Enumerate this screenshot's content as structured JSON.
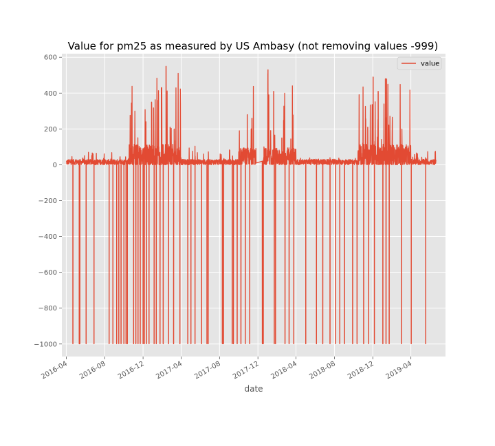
{
  "chart_data": {
    "type": "line",
    "title": "Value for pm25 as measured by US Ambasy (not removing values -999)",
    "xlabel": "date",
    "ylabel": "",
    "x_ticks": [
      "2016-04",
      "2016-08",
      "2016-12",
      "2017-04",
      "2017-08",
      "2017-12",
      "2018-04",
      "2018-08",
      "2018-12",
      "2019-04"
    ],
    "y_ticks": [
      600,
      400,
      200,
      0,
      -200,
      -400,
      -600,
      -800,
      -1000
    ],
    "ylim": [
      -1070,
      620
    ],
    "xlim": [
      "2016-03-18",
      "2019-07-20"
    ],
    "grid": true,
    "legend_position": "top-right",
    "series": [
      {
        "name": "value",
        "color": "#E24A33",
        "segments": [
          {
            "start": "2016-04-01",
            "end": "2016-10-15",
            "baseline": 15,
            "noise": 15,
            "peak": 70
          },
          {
            "start": "2016-10-15",
            "end": "2017-04-01",
            "baseline": 45,
            "noise": 70,
            "peak": 550
          },
          {
            "start": "2017-04-01",
            "end": "2017-10-01",
            "baseline": 15,
            "noise": 15,
            "peak": 105
          },
          {
            "start": "2017-10-01",
            "end": "2018-04-01",
            "baseline": 40,
            "noise": 55,
            "peak": 530
          },
          {
            "start": "2018-04-01",
            "end": "2018-10-15",
            "baseline": 15,
            "noise": 15,
            "peak": 40
          },
          {
            "start": "2018-10-15",
            "end": "2019-04-01",
            "baseline": 45,
            "noise": 70,
            "peak": 490
          },
          {
            "start": "2019-04-01",
            "end": "2019-06-20",
            "baseline": 15,
            "noise": 15,
            "peak": 75
          }
        ],
        "gap": {
          "start": "2017-11-25",
          "end": "2017-12-20",
          "from_value": 10,
          "to_value": 100
        },
        "peaks": [
          {
            "date": "2016-12-10",
            "value": 240
          },
          {
            "date": "2016-12-28",
            "value": 350
          },
          {
            "date": "2017-01-15",
            "value": 360
          },
          {
            "date": "2017-01-28",
            "value": 430
          },
          {
            "date": "2017-02-12",
            "value": 550
          },
          {
            "date": "2017-02-25",
            "value": 210
          },
          {
            "date": "2017-03-10",
            "value": 200
          },
          {
            "date": "2017-10-28",
            "value": 280
          },
          {
            "date": "2017-11-12",
            "value": 260
          },
          {
            "date": "2018-01-02",
            "value": 530
          },
          {
            "date": "2018-01-20",
            "value": 410
          },
          {
            "date": "2018-02-15",
            "value": 150
          },
          {
            "date": "2018-11-15",
            "value": 210
          },
          {
            "date": "2018-12-02",
            "value": 490
          },
          {
            "date": "2018-12-18",
            "value": 410
          },
          {
            "date": "2019-01-10",
            "value": 480
          },
          {
            "date": "2019-02-01",
            "value": 250
          },
          {
            "date": "2019-03-01",
            "value": 110
          }
        ],
        "missing_value": -999,
        "missing_dates": [
          "2016-04-22",
          "2016-05-12",
          "2016-05-14",
          "2016-06-03",
          "2016-06-28",
          "2016-08-15",
          "2016-08-27",
          "2016-09-08",
          "2016-09-15",
          "2016-09-22",
          "2016-10-01",
          "2016-10-08",
          "2016-10-12",
          "2016-11-01",
          "2016-11-08",
          "2016-11-15",
          "2016-11-22",
          "2016-12-01",
          "2016-12-05",
          "2016-12-12",
          "2016-12-20",
          "2017-01-05",
          "2017-01-12",
          "2017-01-24",
          "2017-02-03",
          "2017-02-20",
          "2017-03-08",
          "2017-03-28",
          "2017-04-22",
          "2017-05-02",
          "2017-05-15",
          "2017-06-05",
          "2017-06-22",
          "2017-06-26",
          "2017-08-10",
          "2017-08-14",
          "2017-09-10",
          "2017-09-14",
          "2017-09-26",
          "2017-10-08",
          "2017-10-22",
          "2017-11-05",
          "2017-12-15",
          "2017-12-18",
          "2018-01-22",
          "2018-01-26",
          "2018-02-25",
          "2018-03-10",
          "2018-03-25",
          "2018-05-02",
          "2018-06-05",
          "2018-06-25",
          "2018-07-18",
          "2018-08-05",
          "2018-08-18",
          "2018-09-02",
          "2018-09-28",
          "2018-10-12",
          "2018-11-02",
          "2018-11-18",
          "2018-12-06",
          "2019-01-02",
          "2019-01-12",
          "2019-01-22",
          "2019-03-02",
          "2019-04-02",
          "2019-05-18"
        ]
      }
    ]
  }
}
